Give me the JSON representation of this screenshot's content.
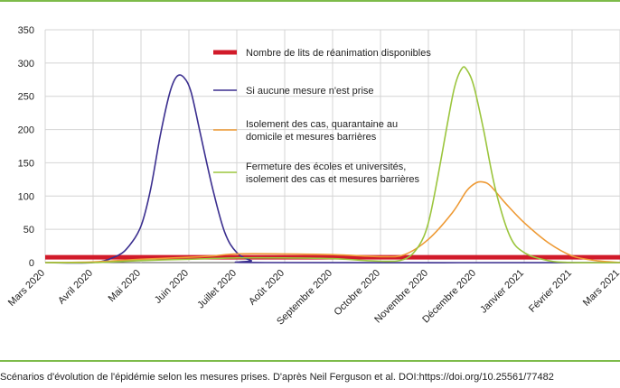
{
  "caption": "Scénarios d'évolution de l'épidémie selon les mesures prises. D'après Neil Ferguson et al. DOI:https://doi.org/10.25561/77482",
  "colors": {
    "frame": "#7dbb4a"
  },
  "chart_data": {
    "type": "line",
    "title": "",
    "xlabel": "",
    "ylabel": "",
    "ylim": [
      0,
      350
    ],
    "yticks": [
      0,
      50,
      100,
      150,
      200,
      250,
      300,
      350
    ],
    "grid": true,
    "legend_position": "top-center",
    "months": [
      "Mars 2020",
      "Avril 2020",
      "Mai 2020",
      "Juin 2020",
      "Juillet 2020",
      "Août 2020",
      "Septembre 2020",
      "Octobre 2020",
      "Novembre 2020",
      "Décembre 2020",
      "Janvier 2021",
      "Février 2021",
      "Mars 2021"
    ],
    "series": [
      {
        "name": "Nombre de lits de réanimation disponibles",
        "color": "#d11b2a",
        "width": 5,
        "points": [
          [
            0,
            8
          ],
          [
            12,
            8
          ]
        ]
      },
      {
        "name": "Si aucune mesure n'est prise",
        "color": "#3b2f8f",
        "width": 1.6,
        "points": [
          [
            0,
            0
          ],
          [
            1,
            0
          ],
          [
            1.5,
            10
          ],
          [
            1.75,
            25
          ],
          [
            2.0,
            55
          ],
          [
            2.2,
            110
          ],
          [
            2.4,
            190
          ],
          [
            2.6,
            255
          ],
          [
            2.75,
            280
          ],
          [
            2.9,
            278
          ],
          [
            3.05,
            255
          ],
          [
            3.25,
            190
          ],
          [
            3.5,
            110
          ],
          [
            3.75,
            45
          ],
          [
            4.0,
            15
          ],
          [
            4.3,
            3
          ],
          [
            4.6,
            0
          ],
          [
            12,
            0
          ]
        ]
      },
      {
        "name": "Isolement des cas, quarantaine au domicile et mesures barrières",
        "color": "#ee9a35",
        "width": 1.6,
        "points": [
          [
            0,
            0
          ],
          [
            1,
            1
          ],
          [
            2,
            5
          ],
          [
            3,
            8
          ],
          [
            3.5,
            10
          ],
          [
            4,
            13
          ],
          [
            5,
            13
          ],
          [
            6,
            12
          ],
          [
            7,
            9
          ],
          [
            7.5,
            12
          ],
          [
            8,
            35
          ],
          [
            8.5,
            75
          ],
          [
            8.8,
            108
          ],
          [
            9.0,
            120
          ],
          [
            9.15,
            121
          ],
          [
            9.3,
            115
          ],
          [
            9.6,
            90
          ],
          [
            10,
            60
          ],
          [
            10.5,
            30
          ],
          [
            11,
            10
          ],
          [
            11.5,
            3
          ],
          [
            12,
            0
          ]
        ]
      },
      {
        "name": "Fermeture des écoles et universités, isolement des cas et mesures barrières",
        "color": "#9bc53d",
        "width": 1.6,
        "points": [
          [
            0,
            0
          ],
          [
            1,
            0
          ],
          [
            2,
            3
          ],
          [
            3,
            5
          ],
          [
            4,
            7
          ],
          [
            5,
            7
          ],
          [
            6,
            6
          ],
          [
            7,
            2
          ],
          [
            7.5,
            5
          ],
          [
            7.8,
            25
          ],
          [
            8.0,
            60
          ],
          [
            8.2,
            130
          ],
          [
            8.4,
            210
          ],
          [
            8.55,
            265
          ],
          [
            8.7,
            292
          ],
          [
            8.8,
            290
          ],
          [
            8.95,
            265
          ],
          [
            9.15,
            200
          ],
          [
            9.4,
            110
          ],
          [
            9.7,
            40
          ],
          [
            10,
            15
          ],
          [
            10.5,
            3
          ],
          [
            11,
            0
          ],
          [
            12,
            0
          ]
        ]
      }
    ]
  }
}
